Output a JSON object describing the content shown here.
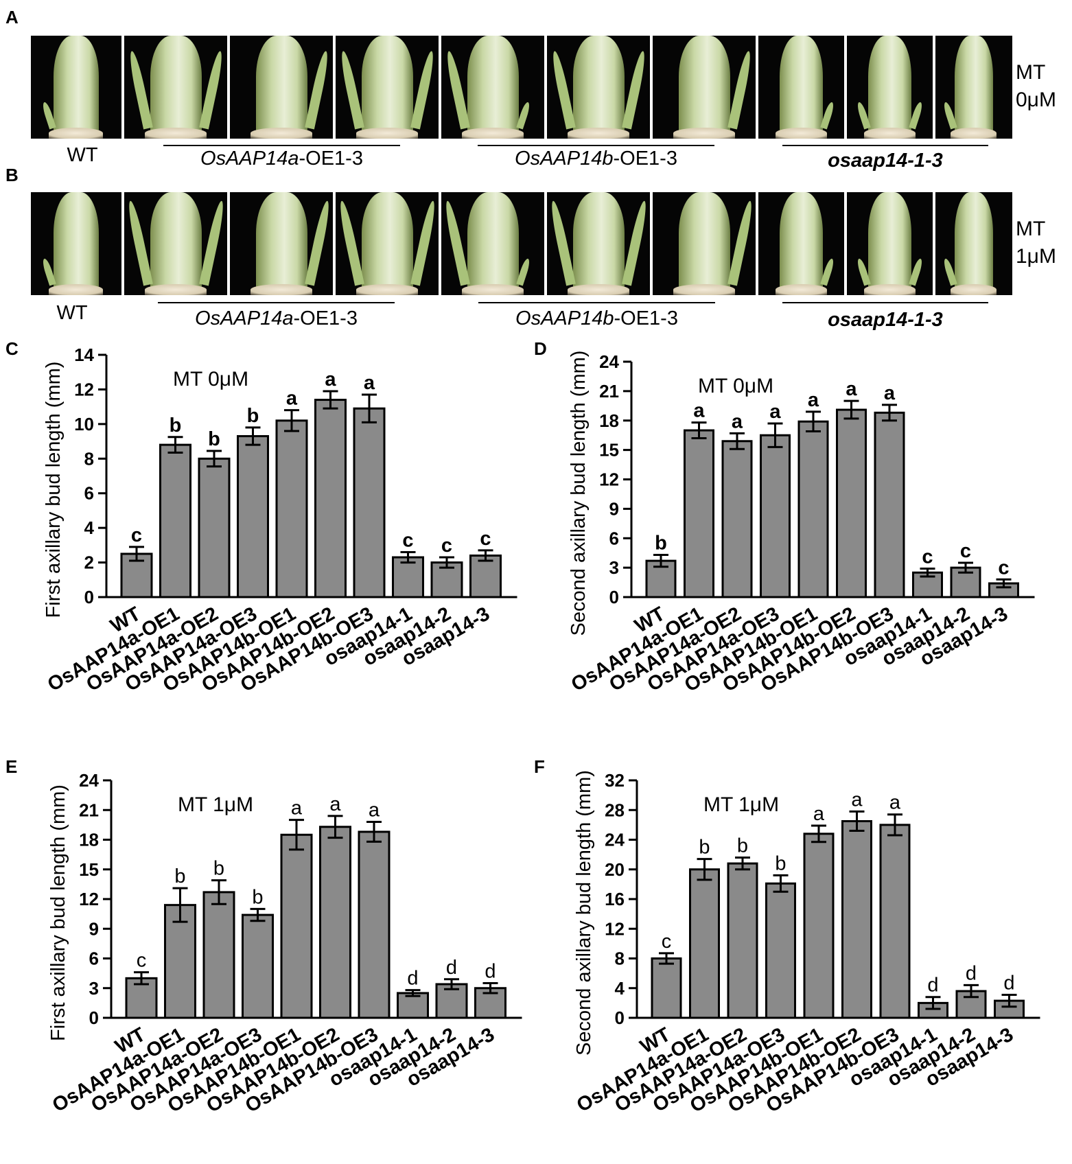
{
  "panels": {
    "A": "A",
    "B": "B",
    "C": "C",
    "D": "D",
    "E": "E",
    "F": "F"
  },
  "photos_row_a": {
    "condition_line1": "MT",
    "condition_line2": "0μM",
    "genotypes": [
      "WT",
      "OsAAP14a",
      "-OE1-3",
      "OsAAP14b",
      "-OE1-3",
      "osaap14-1-3"
    ]
  },
  "photos_row_b": {
    "condition_line1": "MT",
    "condition_line2": "1μM",
    "genotypes": [
      "WT",
      "OsAAP14a",
      "-OE1-3",
      "OsAAP14b",
      "-OE1-3",
      "osaap14-1-3"
    ]
  },
  "colors": {
    "bar": "#8a8a8a",
    "axis": "#000000",
    "stem": "#c9d8a6",
    "leaf": "#a9c27a"
  },
  "chart_data": [
    {
      "panel": "C",
      "type": "bar",
      "annotation": "MT 0μM",
      "ylabel": "First axillary bud length (mm)",
      "ylim": [
        0,
        14
      ],
      "yticks": [
        0,
        2,
        4,
        6,
        8,
        10,
        12,
        14
      ],
      "categories": [
        "WT",
        "OsAAP14a-OE1",
        "OsAAP14a-OE2",
        "OsAAP14a-OE3",
        "OsAAP14b-OE1",
        "OsAAP14b-OE2",
        "OsAAP14b-OE3",
        "osaap14-1",
        "osaap14-2",
        "osaap14-3"
      ],
      "values": [
        2.5,
        8.8,
        8.0,
        9.3,
        10.2,
        11.4,
        10.9,
        2.3,
        2.0,
        2.4
      ],
      "errors": [
        0.4,
        0.45,
        0.45,
        0.5,
        0.6,
        0.5,
        0.8,
        0.3,
        0.3,
        0.3
      ],
      "letters": [
        "c",
        "b",
        "b",
        "b",
        "a",
        "a",
        "a",
        "c",
        "c",
        "c"
      ],
      "bold_letters": true
    },
    {
      "panel": "D",
      "type": "bar",
      "annotation": "MT 0μM",
      "ylabel": "Second axillary bud length (mm)",
      "ylim": [
        0,
        24
      ],
      "yticks": [
        0,
        3,
        6,
        9,
        12,
        15,
        18,
        21,
        24
      ],
      "categories": [
        "WT",
        "OsAAP14a-OE1",
        "OsAAP14a-OE2",
        "OsAAP14a-OE3",
        "OsAAP14b-OE1",
        "OsAAP14b-OE2",
        "OsAAP14b-OE3",
        "osaap14-1",
        "osaap14-2",
        "osaap14-3"
      ],
      "values": [
        3.7,
        17.0,
        15.9,
        16.5,
        17.9,
        19.1,
        18.8,
        2.5,
        3.0,
        1.4
      ],
      "errors": [
        0.6,
        0.8,
        0.8,
        1.2,
        1.0,
        0.9,
        0.8,
        0.4,
        0.5,
        0.4
      ],
      "letters": [
        "b",
        "a",
        "a",
        "a",
        "a",
        "a",
        "a",
        "c",
        "c",
        "c"
      ],
      "bold_letters": true
    },
    {
      "panel": "E",
      "type": "bar",
      "annotation": "MT 1μM",
      "ylabel": "First axillary bud length (mm)",
      "ylim": [
        0,
        24
      ],
      "yticks": [
        0,
        3,
        6,
        9,
        12,
        15,
        18,
        21,
        24
      ],
      "categories": [
        "WT",
        "OsAAP14a-OE1",
        "OsAAP14a-OE2",
        "OsAAP14a-OE3",
        "OsAAP14b-OE1",
        "OsAAP14b-OE2",
        "OsAAP14b-OE3",
        "osaap14-1",
        "osaap14-2",
        "osaap14-3"
      ],
      "values": [
        4.0,
        11.4,
        12.7,
        10.4,
        18.5,
        19.3,
        18.8,
        2.5,
        3.4,
        3.0
      ],
      "errors": [
        0.6,
        1.7,
        1.2,
        0.6,
        1.5,
        1.1,
        1.0,
        0.3,
        0.5,
        0.5
      ],
      "letters": [
        "c",
        "b",
        "b",
        "b",
        "a",
        "a",
        "a",
        "d",
        "d",
        "d"
      ],
      "bold_letters": false
    },
    {
      "panel": "F",
      "type": "bar",
      "annotation": "MT 1μM",
      "ylabel": "Second axillary bud length (mm)",
      "ylim": [
        0,
        32
      ],
      "yticks": [
        0,
        4,
        8,
        12,
        16,
        20,
        24,
        28,
        32
      ],
      "categories": [
        "WT",
        "OsAAP14a-OE1",
        "OsAAP14a-OE2",
        "OsAAP14a-OE3",
        "OsAAP14b-OE1",
        "OsAAP14b-OE2",
        "OsAAP14b-OE3",
        "osaap14-1",
        "osaap14-2",
        "osaap14-3"
      ],
      "values": [
        8.0,
        20.0,
        20.8,
        18.1,
        24.8,
        26.5,
        26.0,
        2.0,
        3.6,
        2.3
      ],
      "errors": [
        0.7,
        1.4,
        0.8,
        1.1,
        1.1,
        1.3,
        1.4,
        0.8,
        0.8,
        0.8
      ],
      "letters": [
        "c",
        "b",
        "b",
        "b",
        "a",
        "a",
        "a",
        "d",
        "d",
        "d"
      ],
      "bold_letters": false
    }
  ]
}
